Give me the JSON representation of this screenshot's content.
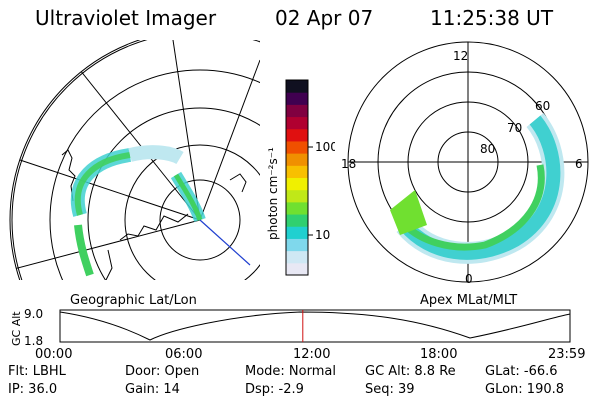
{
  "header": {
    "title": "Ultraviolet Imager",
    "date": "02 Apr 07",
    "time": "11:25:38 UT"
  },
  "panels": {
    "geographic_label": "Geographic Lat/Lon",
    "apex_label": "Apex MLat/MLT",
    "apex_lat_labels": [
      "60",
      "70",
      "80"
    ],
    "apex_mlt_labels": [
      "12",
      "18",
      "6",
      "0"
    ]
  },
  "colorbar": {
    "unit_label": "photon cm⁻²s⁻¹",
    "ticks": [
      "100",
      "10"
    ],
    "scale": "log",
    "colors": [
      "#e8e8f4",
      "#cfe8f4",
      "#7fd8ec",
      "#20d0d0",
      "#30d070",
      "#70e030",
      "#c0e818",
      "#f0f000",
      "#f8c000",
      "#f09000",
      "#f05000",
      "#e01010",
      "#b00030",
      "#800040",
      "#400050",
      "#101020"
    ]
  },
  "timeline": {
    "ylabel": "GC Alt",
    "y_ticks": [
      "9.0",
      "1.8"
    ],
    "x_ticks": [
      "00:00",
      "06:00",
      "12:00",
      "18:00",
      "23:59"
    ],
    "current_fraction": 0.476
  },
  "status": {
    "flt": "Flt: LBHL",
    "ip": "IP: 36.0",
    "door": "Door: Open",
    "gain": "Gain: 14",
    "mode": "Mode: Normal",
    "dsp": "Dsp:   -2.9",
    "gc_alt": "GC Alt: 8.8 Re",
    "seq": "Seq: 39",
    "glat": "GLat: -66.6",
    "glon": "GLon: 190.8"
  },
  "colors": {
    "aurora_green": "#40d060",
    "aurora_cyan": "#40d0d0",
    "aurora_pale": "#bfe8f0",
    "marker_red": "#d01010",
    "blue_line": "#2040d0"
  }
}
